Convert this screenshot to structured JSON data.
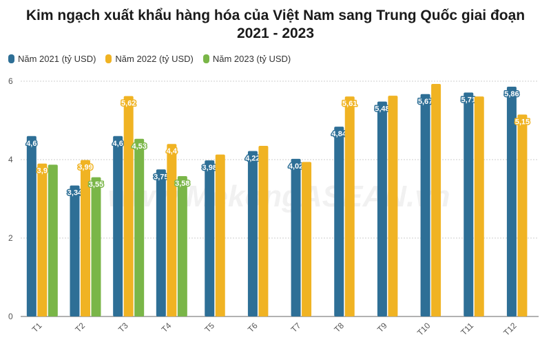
{
  "chart_data": {
    "type": "bar",
    "title": "Kim ngạch xuất khẩu hàng hóa của Việt Nam sang Trung Quốc giai đoạn 2021 - 2023",
    "categories": [
      "T1",
      "T2",
      "T3",
      "T4",
      "T5",
      "T6",
      "T7",
      "T8",
      "T9",
      "T10",
      "T11",
      "T12"
    ],
    "series": [
      {
        "name": "Năm 2021 (tỷ USD)",
        "color": "#2e6f96",
        "values": [
          4.6,
          3.34,
          4.6,
          3.75,
          3.98,
          4.22,
          4.02,
          4.84,
          5.48,
          5.67,
          5.71,
          5.86
        ],
        "labels": [
          "4,6",
          "3,34",
          "4,6",
          "3,75",
          "3,98",
          "4,22",
          "4,02",
          "4,84",
          "5,48",
          "5,67",
          "5,71",
          "5,86"
        ]
      },
      {
        "name": "Năm 2022 (tỷ USD)",
        "color": "#f0b323",
        "values": [
          3.9,
          3.99,
          5.62,
          4.4,
          4.13,
          4.35,
          3.94,
          5.61,
          5.63,
          5.93,
          5.61,
          5.15
        ],
        "labels": [
          "3,9",
          "3,99",
          "5,62",
          "4,4",
          "",
          "",
          "",
          "5,61",
          "",
          "",
          "",
          "5,15"
        ]
      },
      {
        "name": "Năm 2023 (tỷ USD)",
        "color": "#7ab648",
        "values": [
          3.87,
          3.55,
          4.53,
          3.58,
          null,
          null,
          null,
          null,
          null,
          null,
          null,
          null
        ],
        "labels": [
          "",
          "3,55",
          "4,53",
          "3,58",
          "",
          "",
          "",
          "",
          "",
          "",
          "",
          ""
        ]
      }
    ],
    "ylim": [
      0,
      6
    ],
    "yticks": [
      0,
      2,
      4,
      6
    ],
    "grid": true,
    "legend": "top-left"
  },
  "watermark": "www.MekongASEAN.vn"
}
